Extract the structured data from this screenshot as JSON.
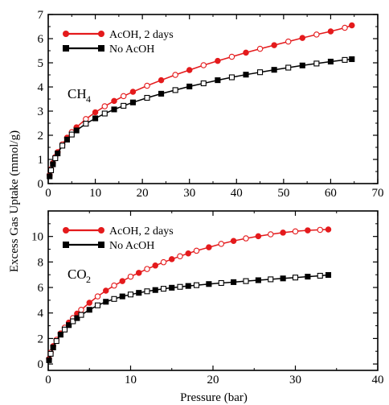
{
  "figure": {
    "ylabel": "Excess Gas Uptake (mmol/g)",
    "xlabel": "Pressure (bar)"
  },
  "chart_data": [
    {
      "type": "scatter",
      "gas_label": "CH",
      "gas_subscript": "4",
      "xlim": [
        0,
        70
      ],
      "ylim": [
        0,
        7
      ],
      "xticks": [
        0,
        10,
        20,
        30,
        40,
        50,
        60,
        70
      ],
      "yticks": [
        0,
        1,
        2,
        3,
        4,
        5,
        6,
        7
      ],
      "legend_position": "top-left",
      "grid": false,
      "series": [
        {
          "name": "AcOH, 2 days",
          "color": "#e41a1c",
          "marker": "circle",
          "x": [
            0.3,
            0.6,
            1.0,
            1.5,
            2.0,
            3.0,
            4.0,
            5.0,
            6.0,
            8.0,
            10.0,
            12.0,
            14.0,
            16.0,
            18.0,
            21.0,
            24.0,
            27.0,
            30.0,
            33.0,
            36.0,
            39.0,
            42.0,
            45.0,
            48.0,
            51.0,
            54.0,
            57.0,
            60.0,
            63.0,
            64.5
          ],
          "y": [
            0.35,
            0.6,
            0.85,
            1.1,
            1.3,
            1.62,
            1.9,
            2.13,
            2.33,
            2.67,
            2.95,
            3.2,
            3.42,
            3.62,
            3.8,
            4.05,
            4.28,
            4.5,
            4.7,
            4.9,
            5.08,
            5.25,
            5.42,
            5.58,
            5.73,
            5.88,
            6.03,
            6.17,
            6.3,
            6.45,
            6.55
          ],
          "filled": [
            true,
            false,
            true,
            false,
            true,
            false,
            true,
            false,
            true,
            false,
            true,
            false,
            true,
            false,
            true,
            false,
            true,
            false,
            true,
            false,
            true,
            false,
            true,
            false,
            true,
            false,
            true,
            false,
            true,
            false,
            true
          ]
        },
        {
          "name": "No AcOH",
          "color": "#000000",
          "marker": "square",
          "x": [
            0.3,
            0.6,
            1.0,
            1.5,
            2.0,
            3.0,
            4.0,
            5.0,
            6.0,
            8.0,
            10.0,
            12.0,
            14.0,
            16.0,
            18.0,
            21.0,
            24.0,
            27.0,
            30.0,
            33.0,
            36.0,
            39.0,
            42.0,
            45.0,
            48.0,
            51.0,
            54.0,
            57.0,
            60.0,
            63.0,
            64.5
          ],
          "y": [
            0.3,
            0.55,
            0.8,
            1.05,
            1.25,
            1.57,
            1.82,
            2.03,
            2.2,
            2.48,
            2.7,
            2.9,
            3.07,
            3.22,
            3.36,
            3.55,
            3.72,
            3.87,
            4.02,
            4.15,
            4.28,
            4.4,
            4.51,
            4.61,
            4.71,
            4.8,
            4.89,
            4.97,
            5.05,
            5.12,
            5.15
          ],
          "filled": [
            true,
            false,
            true,
            false,
            true,
            false,
            true,
            false,
            true,
            false,
            true,
            false,
            true,
            false,
            true,
            false,
            true,
            false,
            true,
            false,
            true,
            false,
            true,
            false,
            true,
            false,
            true,
            false,
            true,
            false,
            true
          ]
        }
      ]
    },
    {
      "type": "scatter",
      "gas_label": "CO",
      "gas_subscript": "2",
      "xlim": [
        0,
        40
      ],
      "ylim": [
        -0.5,
        12
      ],
      "xticks": [
        0,
        10,
        20,
        30,
        40
      ],
      "yticks": [
        0,
        2,
        4,
        6,
        8,
        10
      ],
      "legend_position": "top-left",
      "grid": false,
      "series": [
        {
          "name": "AcOH, 2 days",
          "color": "#e41a1c",
          "marker": "circle",
          "x": [
            0.1,
            0.3,
            0.6,
            1.0,
            1.5,
            2.0,
            2.5,
            3.0,
            3.5,
            4.0,
            5.0,
            6.0,
            7.0,
            8.0,
            9.0,
            10.0,
            11.0,
            12.0,
            13.0,
            14.0,
            15.0,
            16.0,
            17.0,
            18.0,
            19.5,
            21.0,
            22.5,
            24.0,
            25.5,
            27.0,
            28.5,
            30.0,
            31.5,
            33.0,
            34.0
          ],
          "y": [
            0.4,
            0.9,
            1.4,
            1.9,
            2.4,
            2.85,
            3.25,
            3.6,
            3.95,
            4.25,
            4.8,
            5.3,
            5.75,
            6.15,
            6.5,
            6.85,
            7.15,
            7.45,
            7.72,
            7.98,
            8.22,
            8.45,
            8.67,
            8.88,
            9.15,
            9.42,
            9.65,
            9.85,
            10.02,
            10.17,
            10.3,
            10.4,
            10.48,
            10.52,
            10.55
          ],
          "filled": [
            true,
            false,
            true,
            false,
            true,
            false,
            true,
            false,
            true,
            false,
            true,
            false,
            true,
            false,
            true,
            false,
            true,
            false,
            true,
            false,
            true,
            false,
            true,
            false,
            true,
            false,
            true,
            false,
            true,
            false,
            true,
            false,
            true,
            false,
            true
          ]
        },
        {
          "name": "No AcOH",
          "color": "#000000",
          "marker": "square",
          "x": [
            0.1,
            0.3,
            0.6,
            1.0,
            1.5,
            2.0,
            2.5,
            3.0,
            3.5,
            4.0,
            5.0,
            6.0,
            7.0,
            8.0,
            9.0,
            10.0,
            11.0,
            12.0,
            13.0,
            14.0,
            15.0,
            16.0,
            17.0,
            18.0,
            19.5,
            21.0,
            22.5,
            24.0,
            25.5,
            27.0,
            28.5,
            30.0,
            31.5,
            33.0,
            34.0
          ],
          "y": [
            0.3,
            0.8,
            1.3,
            1.8,
            2.3,
            2.7,
            3.05,
            3.35,
            3.6,
            3.85,
            4.25,
            4.6,
            4.88,
            5.1,
            5.3,
            5.45,
            5.58,
            5.7,
            5.8,
            5.9,
            5.98,
            6.05,
            6.12,
            6.18,
            6.27,
            6.35,
            6.42,
            6.5,
            6.57,
            6.64,
            6.71,
            6.78,
            6.85,
            6.92,
            6.98
          ],
          "filled": [
            true,
            false,
            true,
            false,
            true,
            false,
            true,
            false,
            true,
            false,
            true,
            false,
            true,
            false,
            true,
            false,
            true,
            false,
            true,
            false,
            true,
            false,
            true,
            false,
            true,
            false,
            true,
            false,
            true,
            false,
            true,
            false,
            true,
            false,
            true
          ]
        }
      ]
    }
  ]
}
